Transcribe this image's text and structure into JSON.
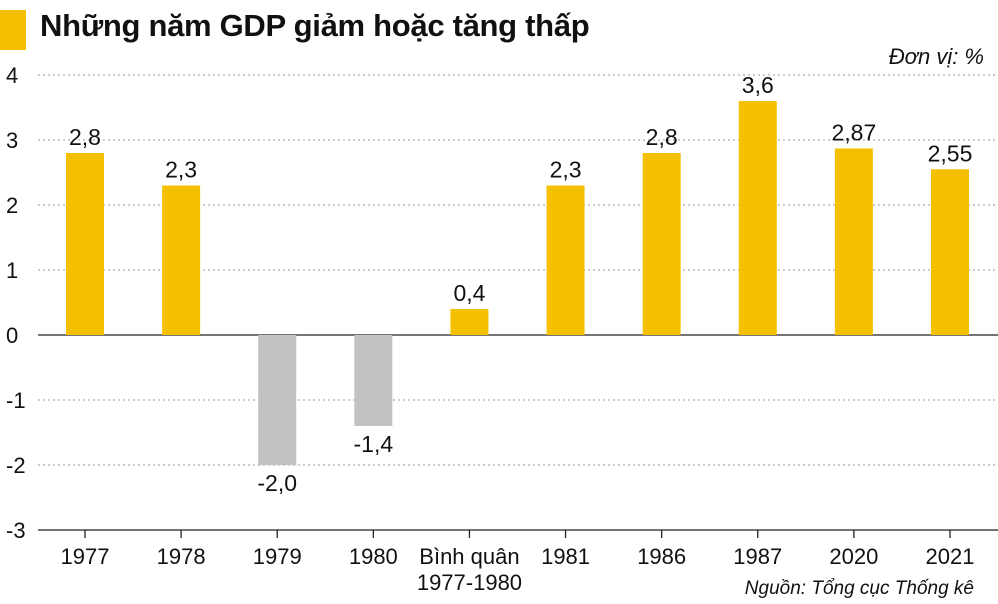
{
  "header": {
    "title": "Những năm GDP giảm hoặc tăng thấp",
    "unit": "Đơn vị: %"
  },
  "footer": {
    "source": "Nguồn: Tổng cục Thống kê"
  },
  "colors": {
    "accent": "#f5c000",
    "positive": "#f5c000",
    "negative": "#c2c2c2",
    "grid": "#9a9a9a",
    "text": "#111111"
  },
  "chart_data": {
    "type": "bar",
    "categories": [
      [
        "1977"
      ],
      [
        "1978"
      ],
      [
        "1979"
      ],
      [
        "1980"
      ],
      [
        "Bình quân",
        "1977-1980"
      ],
      [
        "1981"
      ],
      [
        "1986"
      ],
      [
        "1987"
      ],
      [
        "2020"
      ],
      [
        "2021"
      ]
    ],
    "values": [
      2.8,
      2.3,
      -2.0,
      -1.4,
      0.4,
      2.3,
      2.8,
      3.6,
      2.87,
      2.55
    ],
    "value_labels": [
      "2,8",
      "2,3",
      "-2,0",
      "-1,4",
      "0,4",
      "2,3",
      "2,8",
      "3,6",
      "2,87",
      "2,55"
    ],
    "yticks": [
      4,
      3,
      2,
      1,
      0,
      -1,
      -2,
      -3
    ],
    "ytick_labels": [
      "4",
      "3",
      "2",
      "1",
      "0",
      "-1",
      "-2",
      "-3"
    ],
    "ylim": [
      -3,
      4
    ],
    "grid": "horizontal dotted",
    "legend": "none"
  }
}
